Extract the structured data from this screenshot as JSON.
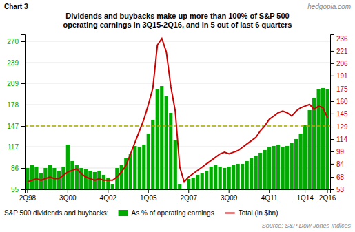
{
  "chart_data": {
    "type": "bar",
    "title": "Dividends and buybacks make up more than 100% of S&P 500\noperating earnings in 3Q15-2Q16, and in 5 out of last 6 quarters",
    "chart_label": "Chart 3",
    "watermark": "hedgopia.com",
    "source": "Source: S&P Dow Jones Indices",
    "legend_title": "S&P 500 dividends and buybacks:",
    "categories": [
      "2Q98",
      null,
      null,
      null,
      null,
      null,
      null,
      null,
      null,
      "3Q00",
      null,
      null,
      null,
      null,
      null,
      null,
      null,
      null,
      "4Q02",
      null,
      null,
      null,
      null,
      null,
      null,
      null,
      null,
      "1Q05",
      null,
      null,
      null,
      null,
      null,
      null,
      null,
      null,
      "2Q07",
      null,
      null,
      null,
      null,
      null,
      null,
      null,
      null,
      "3Q09",
      null,
      null,
      null,
      null,
      null,
      null,
      null,
      null,
      "4Q11",
      null,
      null,
      null,
      null,
      null,
      null,
      null,
      "1Q14",
      null,
      null,
      null,
      null,
      "2Q16"
    ],
    "series": [
      {
        "name": "As % of operating earnings",
        "type": "bar",
        "color": "#00aa00",
        "values": [
          86,
          90,
          88,
          78,
          86,
          90,
          86,
          82,
          88,
          120,
          96,
          90,
          86,
          84,
          82,
          80,
          82,
          76,
          72,
          62,
          86,
          90,
          100,
          106,
          118,
          116,
          120,
          136,
          156,
          200,
          205,
          190,
          166,
          126,
          62,
          56,
          70,
          72,
          76,
          78,
          82,
          88,
          90,
          88,
          86,
          88,
          90,
          92,
          92,
          96,
          100,
          104,
          108,
          112,
          116,
          118,
          120,
          116,
          118,
          122,
          128,
          136,
          148,
          170,
          188,
          200,
          202,
          200
        ]
      },
      {
        "name": "Total (in $bn)",
        "type": "line",
        "color": "#cc0000",
        "axis": "y2",
        "values": [
          62,
          64,
          66,
          64,
          66,
          68,
          66,
          66,
          70,
          74,
          76,
          78,
          72,
          68,
          66,
          64,
          66,
          64,
          64,
          64,
          68,
          74,
          82,
          96,
          110,
          124,
          138,
          156,
          176,
          228,
          236,
          220,
          178,
          148,
          80,
          62,
          68,
          72,
          76,
          80,
          84,
          88,
          92,
          96,
          98,
          96,
          98,
          100,
          104,
          108,
          112,
          116,
          124,
          130,
          138,
          142,
          146,
          148,
          146,
          142,
          148,
          152,
          154,
          156,
          150,
          154,
          152,
          140
        ]
      }
    ],
    "ylim": [
      55,
      280
    ],
    "yticks": [
      55,
      86,
      117,
      147,
      178,
      209,
      239,
      270
    ],
    "y2lim": [
      53,
      241
    ],
    "y2ticks": [
      53,
      68,
      84,
      99,
      114,
      129,
      145,
      160,
      175,
      191,
      206,
      221,
      236
    ],
    "reference_line": {
      "value": 147,
      "axis": "y",
      "color": "#aaaa00",
      "line_style": "dashed"
    },
    "grid": true,
    "legend": "bottom"
  }
}
